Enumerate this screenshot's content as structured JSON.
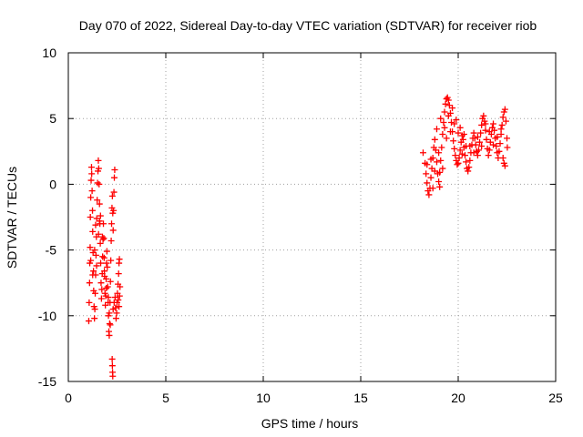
{
  "chart_data": {
    "type": "scatter",
    "title": "Day 070 of 2022, Sidereal Day-to-day VTEC variation (SDTVAR) for receiver riob",
    "xlabel": "GPS time / hours",
    "ylabel": "SDTVAR / TECUs",
    "xlim": [
      0,
      25
    ],
    "ylim": [
      -15,
      10
    ],
    "xticks": [
      0,
      5,
      10,
      15,
      20,
      25
    ],
    "yticks": [
      -15,
      -10,
      -5,
      0,
      5,
      10
    ],
    "xtick_labels": [
      "0",
      "5",
      "10",
      "15",
      "20",
      "25"
    ],
    "ytick_labels": [
      "-15",
      "-10",
      "-5",
      "0",
      "5",
      "10"
    ],
    "grid": true,
    "marker": "+",
    "color": "#ff0000",
    "series": [
      {
        "name": "SDTVAR",
        "points": [
          [
            1.05,
            -10.4
          ],
          [
            1.07,
            -9.0
          ],
          [
            1.09,
            -7.5
          ],
          [
            1.1,
            -6.0
          ],
          [
            1.12,
            -4.8
          ],
          [
            1.13,
            -2.5
          ],
          [
            1.15,
            -1.0
          ],
          [
            1.17,
            0.3
          ],
          [
            1.19,
            1.3
          ],
          [
            1.2,
            0.8
          ],
          [
            1.22,
            -0.5
          ],
          [
            1.24,
            -2.0
          ],
          [
            1.25,
            -3.6
          ],
          [
            1.27,
            -5.2
          ],
          [
            1.29,
            -6.6
          ],
          [
            1.3,
            -8.1
          ],
          [
            1.32,
            -9.3
          ],
          [
            1.34,
            -10.2
          ],
          [
            1.36,
            -9.5
          ],
          [
            1.38,
            -8.3
          ],
          [
            1.4,
            -6.9
          ],
          [
            1.42,
            -5.4
          ],
          [
            1.44,
            -4.0
          ],
          [
            1.46,
            -2.6
          ],
          [
            1.48,
            -1.2
          ],
          [
            1.5,
            0.1
          ],
          [
            1.52,
            1.0
          ],
          [
            1.54,
            1.8
          ],
          [
            1.56,
            1.2
          ],
          [
            1.58,
            0.0
          ],
          [
            1.6,
            -1.5
          ],
          [
            1.62,
            -3.0
          ],
          [
            1.64,
            -4.5
          ],
          [
            1.66,
            -6.0
          ],
          [
            1.68,
            -7.5
          ],
          [
            1.7,
            -8.7
          ],
          [
            1.72,
            -8.0
          ],
          [
            1.74,
            -6.8
          ],
          [
            1.76,
            -5.5
          ],
          [
            1.78,
            -4.2
          ],
          [
            1.8,
            -3.0
          ],
          [
            1.82,
            -4.1
          ],
          [
            1.84,
            -5.6
          ],
          [
            1.86,
            -7.0
          ],
          [
            1.88,
            -8.3
          ],
          [
            1.9,
            -9.2
          ],
          [
            1.92,
            -8.5
          ],
          [
            1.94,
            -7.2
          ],
          [
            1.96,
            -6.0
          ],
          [
            1.98,
            -5.1
          ],
          [
            2.0,
            -6.3
          ],
          [
            2.02,
            -7.8
          ],
          [
            2.04,
            -9.0
          ],
          [
            2.06,
            -10.0
          ],
          [
            2.08,
            -11.2
          ],
          [
            2.1,
            -11.5
          ],
          [
            2.12,
            -10.6
          ],
          [
            2.14,
            -9.0
          ],
          [
            2.16,
            -7.4
          ],
          [
            2.18,
            -5.8
          ],
          [
            2.2,
            -4.3
          ],
          [
            2.22,
            -3.0
          ],
          [
            2.24,
            -1.8
          ],
          [
            2.26,
            -0.9
          ],
          [
            2.28,
            -2.2
          ],
          [
            2.3,
            -3.5
          ],
          [
            2.32,
            -2.0
          ],
          [
            2.34,
            -0.6
          ],
          [
            2.36,
            0.5
          ],
          [
            2.38,
            1.1
          ],
          [
            2.25,
            -13.3
          ],
          [
            2.26,
            -13.8
          ],
          [
            2.27,
            -14.3
          ],
          [
            2.28,
            -14.6
          ],
          [
            2.1,
            -9.8
          ],
          [
            2.15,
            -10.7
          ],
          [
            2.3,
            -9.5
          ],
          [
            2.35,
            -9.0
          ],
          [
            2.4,
            -8.6
          ],
          [
            2.42,
            -9.4
          ],
          [
            2.45,
            -10.2
          ],
          [
            2.48,
            -9.8
          ],
          [
            2.5,
            -9.0
          ],
          [
            2.52,
            -8.3
          ],
          [
            2.55,
            -7.6
          ],
          [
            2.58,
            -6.8
          ],
          [
            2.6,
            -6.0
          ],
          [
            2.62,
            -5.7
          ],
          [
            2.56,
            -8.8
          ],
          [
            2.6,
            -9.3
          ],
          [
            2.63,
            -8.5
          ],
          [
            2.65,
            -7.8
          ],
          [
            1.35,
            -5.0
          ],
          [
            1.45,
            -6.2
          ],
          [
            1.55,
            -3.8
          ],
          [
            1.65,
            -2.4
          ],
          [
            1.75,
            -4.0
          ],
          [
            1.85,
            -6.6
          ],
          [
            1.95,
            -7.9
          ],
          [
            2.05,
            -8.6
          ],
          [
            1.15,
            -5.8
          ],
          [
            1.25,
            -6.9
          ],
          [
            1.4,
            -3.1
          ],
          [
            1.6,
            -2.8
          ],
          [
            18.2,
            2.4
          ],
          [
            18.3,
            1.6
          ],
          [
            18.35,
            0.8
          ],
          [
            18.4,
            0.1
          ],
          [
            18.45,
            -0.5
          ],
          [
            18.5,
            -0.8
          ],
          [
            18.55,
            -0.3
          ],
          [
            18.6,
            0.5
          ],
          [
            18.65,
            1.2
          ],
          [
            18.7,
            2.0
          ],
          [
            18.75,
            2.8
          ],
          [
            18.8,
            3.4
          ],
          [
            18.85,
            2.6
          ],
          [
            18.9,
            1.7
          ],
          [
            18.95,
            0.8
          ],
          [
            19.0,
            0.2
          ],
          [
            19.05,
            0.9
          ],
          [
            19.1,
            1.8
          ],
          [
            19.15,
            2.8
          ],
          [
            19.2,
            3.8
          ],
          [
            19.25,
            4.7
          ],
          [
            19.3,
            5.5
          ],
          [
            19.35,
            6.1
          ],
          [
            19.4,
            6.5
          ],
          [
            19.45,
            6.6
          ],
          [
            19.5,
            6.4
          ],
          [
            19.55,
            6.0
          ],
          [
            19.6,
            5.4
          ],
          [
            19.65,
            4.7
          ],
          [
            19.7,
            4.0
          ],
          [
            19.75,
            3.3
          ],
          [
            19.8,
            2.7
          ],
          [
            19.85,
            2.2
          ],
          [
            19.9,
            1.8
          ],
          [
            19.95,
            1.5
          ],
          [
            20.0,
            1.6
          ],
          [
            20.05,
            2.0
          ],
          [
            20.1,
            2.6
          ],
          [
            20.15,
            3.2
          ],
          [
            20.2,
            3.7
          ],
          [
            20.25,
            3.4
          ],
          [
            20.3,
            2.8
          ],
          [
            20.35,
            2.2
          ],
          [
            20.4,
            1.7
          ],
          [
            20.45,
            1.2
          ],
          [
            20.5,
            1.0
          ],
          [
            20.55,
            1.3
          ],
          [
            20.6,
            1.8
          ],
          [
            20.65,
            2.4
          ],
          [
            20.7,
            3.0
          ],
          [
            20.75,
            3.5
          ],
          [
            20.8,
            3.9
          ],
          [
            20.85,
            3.5
          ],
          [
            20.9,
            3.0
          ],
          [
            20.95,
            2.5
          ],
          [
            21.0,
            2.2
          ],
          [
            21.05,
            2.6
          ],
          [
            21.1,
            3.2
          ],
          [
            21.15,
            3.9
          ],
          [
            21.2,
            4.5
          ],
          [
            21.25,
            5.0
          ],
          [
            21.3,
            5.2
          ],
          [
            21.35,
            4.8
          ],
          [
            21.4,
            4.1
          ],
          [
            21.45,
            3.4
          ],
          [
            21.5,
            2.7
          ],
          [
            21.55,
            2.2
          ],
          [
            21.6,
            2.6
          ],
          [
            21.65,
            3.2
          ],
          [
            21.7,
            3.8
          ],
          [
            21.75,
            4.3
          ],
          [
            21.8,
            4.6
          ],
          [
            21.85,
            4.1
          ],
          [
            21.9,
            3.5
          ],
          [
            21.95,
            2.9
          ],
          [
            22.0,
            2.4
          ],
          [
            22.05,
            2.0
          ],
          [
            22.1,
            2.5
          ],
          [
            22.15,
            3.1
          ],
          [
            22.2,
            3.8
          ],
          [
            22.25,
            4.5
          ],
          [
            22.3,
            5.1
          ],
          [
            22.35,
            5.5
          ],
          [
            22.4,
            5.7
          ],
          [
            22.45,
            4.8
          ],
          [
            22.5,
            3.5
          ],
          [
            22.52,
            2.8
          ],
          [
            22.3,
            2.0
          ],
          [
            22.35,
            1.6
          ],
          [
            22.4,
            1.4
          ],
          [
            18.6,
            1.9
          ],
          [
            18.8,
            1.0
          ],
          [
            19.0,
            2.4
          ],
          [
            19.2,
            1.2
          ],
          [
            19.4,
            3.5
          ],
          [
            19.6,
            4.0
          ],
          [
            19.8,
            4.6
          ],
          [
            20.0,
            3.9
          ],
          [
            20.2,
            2.3
          ],
          [
            20.4,
            2.9
          ],
          [
            18.9,
            4.2
          ],
          [
            19.1,
            5.0
          ],
          [
            19.3,
            4.3
          ],
          [
            19.5,
            5.2
          ],
          [
            19.7,
            5.8
          ],
          [
            19.9,
            4.9
          ],
          [
            20.1,
            4.3
          ],
          [
            20.3,
            3.8
          ],
          [
            20.6,
            2.9
          ],
          [
            20.8,
            2.4
          ],
          [
            21.0,
            3.6
          ],
          [
            21.2,
            2.9
          ],
          [
            21.4,
            4.6
          ],
          [
            21.6,
            4.0
          ],
          [
            21.8,
            3.0
          ],
          [
            22.0,
            3.6
          ],
          [
            22.2,
            4.2
          ],
          [
            18.4,
            1.5
          ],
          [
            18.7,
            -0.3
          ],
          [
            19.05,
            -0.2
          ]
        ]
      }
    ]
  }
}
